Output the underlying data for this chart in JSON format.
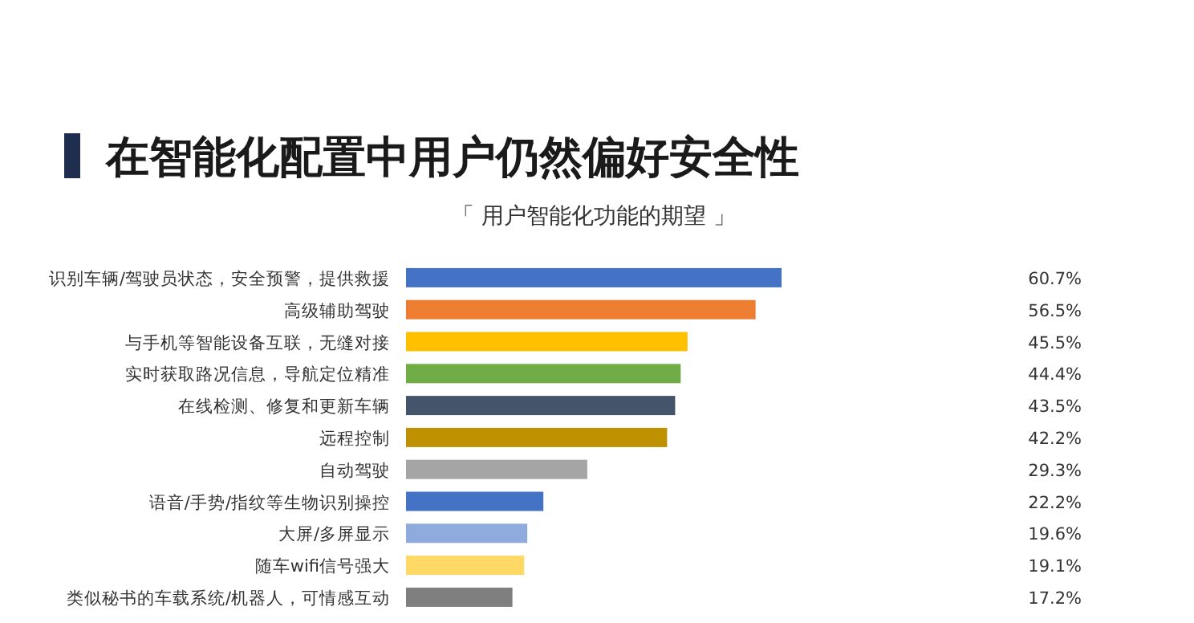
{
  "chart_data": {
    "type": "bar",
    "orientation": "horizontal",
    "title": "在智能化配置中用户仍然偏好安全性",
    "subtitle": "「 用户智能化功能的期望 」",
    "categories": [
      "识别车辆/驾驶员状态，安全预警，提供救援",
      "高级辅助驾驶",
      "与手机等智能设备互联，无缝对接",
      "实时获取路况信息，导航定位精准",
      "在线检测、修复和更新车辆",
      "远程控制",
      "自动驾驶",
      "语音/手势/指纹等生物识别操控",
      "大屏/多屏显示",
      "随车wifi信号强大",
      "类似秘书的车载系统/机器人，可情感互动"
    ],
    "values": [
      60.7,
      56.5,
      45.5,
      44.4,
      43.5,
      42.2,
      29.3,
      22.2,
      19.6,
      19.1,
      17.2
    ],
    "colors": [
      "#4472c4",
      "#ed7d31",
      "#ffc000",
      "#70ad47",
      "#44546a",
      "#bf9000",
      "#a5a5a5",
      "#4472c4",
      "#8faadc",
      "#ffd966",
      "#7f7f7f"
    ],
    "value_labels": [
      "60.7%",
      "56.5%",
      "45.5%",
      "44.4%",
      "43.5%",
      "42.2%",
      "29.3%",
      "22.2%",
      "19.6%",
      "19.1%",
      "17.2%"
    ]
  }
}
